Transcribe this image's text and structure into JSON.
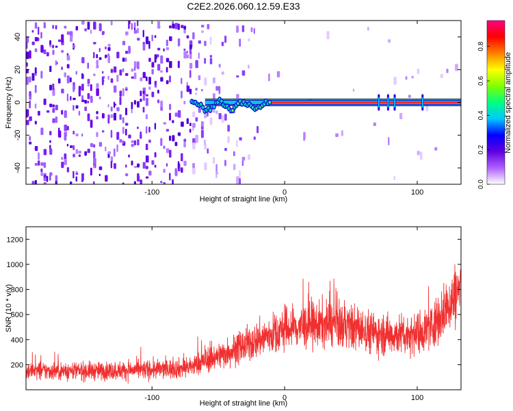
{
  "figure_title": "C2E2.2026.060.12.59.E33",
  "chart_data": [
    {
      "type": "heatmap",
      "title": "",
      "xlabel": "Height of straight line (km)",
      "ylabel": "Frequency (Hz)",
      "xlim": [
        -195,
        133
      ],
      "ylim": [
        -50,
        50
      ],
      "x_ticks": [
        -100,
        0,
        100
      ],
      "y_ticks": [
        -40,
        -20,
        0,
        20,
        40
      ],
      "grid": false,
      "colorbar": {
        "label": "Normalized spectral amplitude",
        "range": [
          0.0,
          0.95
        ],
        "ticks": [
          0.0,
          0.2,
          0.4,
          0.6,
          0.8
        ],
        "colormap": [
          "#ffffff",
          "#b060ff",
          "#6000e0",
          "#0000ff",
          "#00c8ff",
          "#00ff80",
          "#80ff00",
          "#ffff00",
          "#ff8000",
          "#ff0000",
          "#ff0080"
        ]
      },
      "features": {
        "noise_region_x": [
          -195,
          -20
        ],
        "carrier_start_x": -70,
        "carrier_frequency": 0,
        "carrier_spikes_x": [
          71,
          78,
          83,
          104
        ]
      }
    },
    {
      "type": "line",
      "title": "",
      "xlabel": "Height of straight line (km)",
      "ylabel": "SNR (10 * v/v)",
      "xlim": [
        -195,
        133
      ],
      "ylim": [
        0,
        1300
      ],
      "x_ticks": [
        -100,
        0,
        100
      ],
      "y_ticks": [
        200,
        400,
        600,
        800,
        1000,
        1200
      ],
      "grid": false,
      "series": [
        {
          "color": "#f03030",
          "x": [
            -195,
            -180,
            -160,
            -140,
            -120,
            -100,
            -90,
            -80,
            -70,
            -60,
            -50,
            -40,
            -30,
            -20,
            -10,
            0,
            10,
            20,
            30,
            40,
            50,
            60,
            70,
            80,
            90,
            100,
            110,
            120,
            133
          ],
          "y": [
            150,
            150,
            150,
            150,
            155,
            160,
            165,
            170,
            185,
            230,
            270,
            310,
            350,
            400,
            440,
            480,
            500,
            510,
            520,
            520,
            500,
            470,
            450,
            440,
            440,
            450,
            500,
            620,
            820
          ]
        }
      ]
    }
  ]
}
